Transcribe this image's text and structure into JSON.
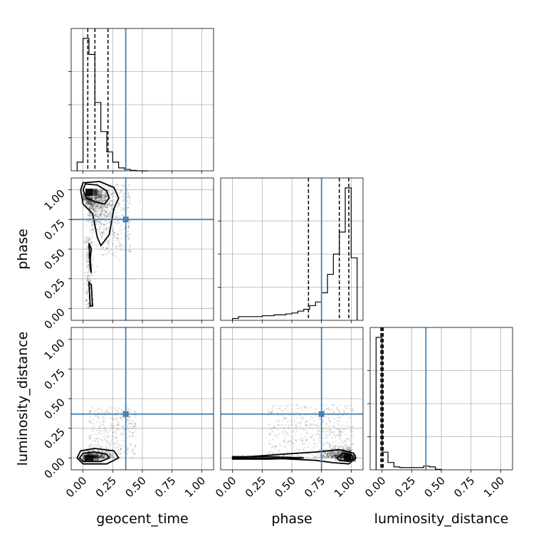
{
  "chart_data": {
    "type": "corner",
    "parameters": [
      "geocent_time",
      "phase",
      "luminosity_distance"
    ],
    "axis_labels": {
      "x": [
        "geocent_time",
        "phase",
        "luminosity_distance"
      ],
      "y": [
        "phase",
        "luminosity_distance"
      ]
    },
    "range": [
      -0.1,
      1.1
    ],
    "tick_labels": [
      "0.00",
      "0.25",
      "0.50",
      "0.75",
      "1.00"
    ],
    "tick_values": [
      0.0,
      0.25,
      0.5,
      0.75,
      1.0
    ],
    "grid": true,
    "truths": {
      "geocent_time": 0.36,
      "phase": 0.75,
      "luminosity_distance": 0.37
    },
    "truth_color": "#4682b4",
    "histograms": {
      "geocent_time": {
        "bin_edges": [
          -0.05,
          0.0,
          0.05,
          0.1,
          0.15,
          0.2,
          0.25,
          0.3,
          0.35,
          0.4,
          0.45,
          0.5,
          0.55
        ],
        "counts": [
          6,
          91,
          80,
          47,
          27,
          13,
          6,
          2,
          1,
          0.3,
          0,
          0
        ],
        "quantiles": [
          0.04,
          0.1,
          0.21
        ]
      },
      "phase": {
        "bin_edges": [
          0.0,
          0.05,
          0.1,
          0.15,
          0.2,
          0.25,
          0.3,
          0.35,
          0.4,
          0.45,
          0.5,
          0.55,
          0.6,
          0.65,
          0.7,
          0.75,
          0.8,
          0.85,
          0.9,
          0.95,
          1.0,
          1.05
        ],
        "counts": [
          1,
          2,
          2,
          2,
          2,
          2.5,
          2.5,
          3,
          3,
          3.5,
          4,
          5,
          6,
          8,
          10,
          15,
          25,
          36,
          48,
          72,
          34
        ],
        "quantiles": [
          0.64,
          0.9,
          0.98
        ]
      },
      "luminosity_distance": {
        "bin_edges": [
          -0.05,
          0.0,
          0.05,
          0.1,
          0.15,
          0.2,
          0.25,
          0.3,
          0.35,
          0.4,
          0.45,
          0.5
        ],
        "counts": [
          90,
          12,
          5,
          2,
          1.5,
          1.5,
          1.5,
          1.5,
          2.5,
          2,
          0.3
        ],
        "quantiles": [
          -0.01,
          0.0,
          0.01
        ]
      }
    },
    "density_modes": {
      "phase_vs_geocent_time": {
        "x": 0.05,
        "y": 0.98
      },
      "luminosity_distance_vs_geocent_time": {
        "x": 0.05,
        "y": 0.0
      },
      "luminosity_distance_vs_phase": {
        "x": 0.97,
        "y": 0.0
      }
    }
  }
}
